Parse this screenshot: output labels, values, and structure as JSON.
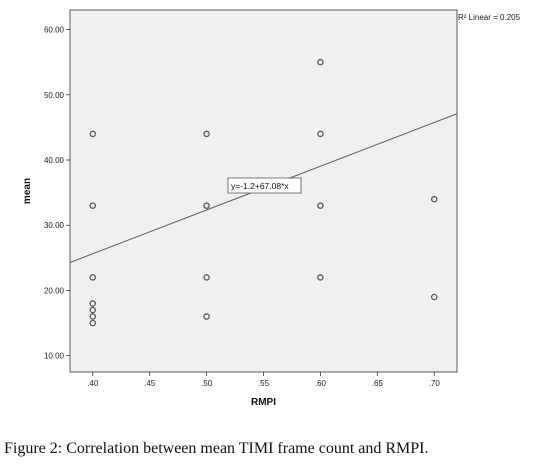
{
  "chart_data": {
    "type": "scatter",
    "xlabel": "RMPI",
    "ylabel": "mean",
    "xlim": [
      0.38,
      0.72
    ],
    "ylim": [
      7.5,
      63.0
    ],
    "x_ticks": [
      0.4,
      0.45,
      0.5,
      0.55,
      0.6,
      0.65,
      0.7
    ],
    "x_tick_labels": [
      ".40",
      ".45",
      ".50",
      ".55",
      ".60",
      ".65",
      ".70"
    ],
    "y_ticks": [
      10,
      20,
      30,
      40,
      50,
      60
    ],
    "y_tick_labels": [
      "10.00",
      "20.00",
      "30.00",
      "40.00",
      "50.00",
      "60.00"
    ],
    "points": [
      {
        "x": 0.4,
        "y": 44
      },
      {
        "x": 0.4,
        "y": 33
      },
      {
        "x": 0.4,
        "y": 22
      },
      {
        "x": 0.4,
        "y": 18
      },
      {
        "x": 0.4,
        "y": 17
      },
      {
        "x": 0.4,
        "y": 16
      },
      {
        "x": 0.4,
        "y": 15
      },
      {
        "x": 0.5,
        "y": 44
      },
      {
        "x": 0.5,
        "y": 33
      },
      {
        "x": 0.5,
        "y": 22
      },
      {
        "x": 0.5,
        "y": 16
      },
      {
        "x": 0.6,
        "y": 55
      },
      {
        "x": 0.6,
        "y": 44
      },
      {
        "x": 0.6,
        "y": 33
      },
      {
        "x": 0.6,
        "y": 22
      },
      {
        "x": 0.7,
        "y": 34
      },
      {
        "x": 0.7,
        "y": 19
      }
    ],
    "fit_line": {
      "intercept": -1.2,
      "slope": 67.08
    },
    "equation_label": "y=-1.2+67.08*x",
    "r2_label": "R² Linear = 0.205",
    "grid": false,
    "plot_background": "#f0f0f0",
    "point_color": "#555555",
    "line_color": "#666666"
  },
  "caption": {
    "label": "Figure 2:",
    "text": " Correlation between mean TIMI frame count and RMPI."
  }
}
